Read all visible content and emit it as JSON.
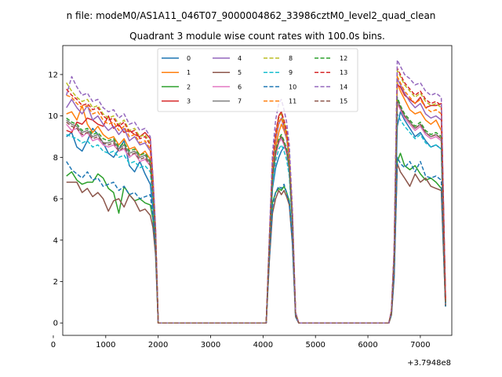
{
  "suptitle": "n file: modeM0/AS1A11_046T07_9000004862_33986cztM0_level2_quad_clean",
  "chart_data": {
    "type": "line",
    "title": "Quadrant 3 module wise count rates with 100.0s bins.",
    "xlabel": "",
    "ylabel": "",
    "x_offset_label": "+3.7948e8",
    "xlim": [
      180,
      7600
    ],
    "ylim": [
      -0.6,
      13.4
    ],
    "xticks": [
      0,
      1000,
      2000,
      3000,
      4000,
      5000,
      6000,
      7000
    ],
    "yticks": [
      0,
      2,
      4,
      6,
      8,
      10,
      12
    ],
    "grid": false,
    "legend": {
      "placement": "top-center",
      "columns": 4
    },
    "x": [
      250,
      350,
      450,
      550,
      650,
      750,
      850,
      950,
      1050,
      1150,
      1250,
      1350,
      1450,
      1550,
      1650,
      1750,
      1850,
      1900,
      1950,
      2000,
      2100,
      2500,
      3000,
      3500,
      4000,
      4060,
      4120,
      4180,
      4240,
      4300,
      4350,
      4400,
      4450,
      4500,
      4560,
      4620,
      4680,
      4700,
      5000,
      5500,
      6000,
      6350,
      6400,
      6450,
      6500,
      6560,
      6620,
      6700,
      6800,
      6900,
      7000,
      7100,
      7200,
      7300,
      7400,
      7480
    ],
    "series": [
      {
        "name": "0",
        "color": "#1f77b4",
        "dash": "solid",
        "values": [
          9.0,
          9.2,
          8.5,
          8.3,
          8.8,
          9.4,
          9.1,
          8.7,
          8.2,
          8.0,
          8.4,
          8.8,
          7.6,
          7.3,
          7.8,
          7.2,
          6.7,
          5.5,
          4.0,
          0,
          0,
          0,
          0,
          0,
          0,
          0,
          3.6,
          6.5,
          7.5,
          8.0,
          8.3,
          8.5,
          8.3,
          7.3,
          4.8,
          0.4,
          0,
          0,
          0,
          0,
          0,
          0,
          0,
          0.5,
          3.0,
          9.5,
          10.2,
          9.8,
          9.4,
          9.0,
          9.2,
          8.8,
          8.5,
          8.6,
          8.4,
          0.8
        ]
      },
      {
        "name": "1",
        "color": "#ff7f0e",
        "dash": "solid",
        "values": [
          10.1,
          10.2,
          9.8,
          10.5,
          9.6,
          9.2,
          9.5,
          9.1,
          8.9,
          9.0,
          8.6,
          8.9,
          8.4,
          8.5,
          8.1,
          8.3,
          7.9,
          6.4,
          4.2,
          0,
          0,
          0,
          0,
          0,
          0,
          0,
          3.8,
          7.2,
          8.5,
          9.2,
          9.6,
          9.3,
          8.9,
          7.8,
          5.0,
          0.5,
          0,
          0,
          0,
          0,
          0,
          0,
          0,
          0.6,
          3.3,
          11.6,
          11.2,
          10.8,
          10.3,
          10.1,
          10.2,
          9.8,
          9.6,
          9.8,
          9.3,
          1.0
        ]
      },
      {
        "name": "2",
        "color": "#2ca02c",
        "dash": "solid",
        "values": [
          7.1,
          7.3,
          6.9,
          6.7,
          6.8,
          6.8,
          7.2,
          7.0,
          6.5,
          6.3,
          5.3,
          6.6,
          6.2,
          5.9,
          6.0,
          5.8,
          5.7,
          5.0,
          3.6,
          0,
          0,
          0,
          0,
          0,
          0,
          0,
          3.2,
          5.8,
          6.3,
          6.5,
          6.4,
          6.6,
          6.3,
          5.9,
          4.0,
          0.4,
          0,
          0,
          0,
          0,
          0,
          0,
          0,
          0.4,
          2.4,
          7.8,
          8.2,
          7.6,
          7.4,
          7.6,
          7.2,
          6.9,
          7.0,
          6.8,
          6.5,
          0.8
        ]
      },
      {
        "name": "3",
        "color": "#d62728",
        "dash": "solid",
        "values": [
          9.3,
          9.2,
          9.7,
          9.6,
          9.9,
          9.8,
          9.6,
          9.5,
          10.0,
          9.4,
          9.6,
          9.2,
          9.3,
          9.1,
          9.0,
          9.2,
          8.9,
          7.0,
          4.5,
          0,
          0,
          0,
          0,
          0,
          0,
          0,
          3.8,
          7.5,
          9.0,
          10.0,
          10.2,
          9.6,
          9.0,
          8.0,
          5.2,
          0.5,
          0,
          0,
          0,
          0,
          0,
          0,
          0,
          0.6,
          3.4,
          11.5,
          11.4,
          11.0,
          10.8,
          10.6,
          10.9,
          10.4,
          10.5,
          10.5,
          10.6,
          1.1
        ]
      },
      {
        "name": "4",
        "color": "#9467bd",
        "dash": "solid",
        "values": [
          10.4,
          10.8,
          10.4,
          10.1,
          10.5,
          9.8,
          10.0,
          9.6,
          9.3,
          9.5,
          9.1,
          9.4,
          8.8,
          9.0,
          8.6,
          8.7,
          8.3,
          6.6,
          4.3,
          0,
          0,
          0,
          0,
          0,
          0,
          0,
          3.9,
          7.4,
          8.8,
          9.6,
          9.9,
          9.4,
          8.9,
          7.9,
          5.1,
          0.5,
          0,
          0,
          0,
          0,
          0,
          0,
          0,
          0.6,
          3.4,
          11.8,
          11.5,
          11.1,
          10.7,
          10.4,
          10.6,
          10.1,
          9.9,
          10.0,
          9.8,
          1.1
        ]
      },
      {
        "name": "5",
        "color": "#8c564b",
        "dash": "solid",
        "values": [
          6.8,
          6.8,
          6.8,
          6.3,
          6.5,
          6.1,
          6.3,
          6.0,
          5.4,
          5.9,
          6.0,
          5.6,
          6.2,
          5.9,
          5.4,
          5.5,
          5.2,
          4.6,
          3.3,
          0,
          0,
          0,
          0,
          0,
          0,
          0,
          3.0,
          5.3,
          6.0,
          6.4,
          6.2,
          6.4,
          6.1,
          5.7,
          3.8,
          0.3,
          0,
          0,
          0,
          0,
          0,
          0,
          0,
          0.4,
          2.2,
          7.7,
          7.3,
          7.0,
          6.6,
          7.2,
          6.8,
          7.0,
          6.6,
          6.5,
          6.4,
          0.8
        ]
      },
      {
        "name": "6",
        "color": "#e377c2",
        "dash": "solid",
        "values": [
          9.6,
          9.3,
          9.4,
          9.0,
          9.2,
          8.8,
          8.9,
          8.6,
          8.5,
          8.6,
          8.3,
          8.4,
          8.0,
          8.2,
          7.8,
          7.9,
          7.6,
          6.1,
          4.1,
          0,
          0,
          0,
          0,
          0,
          0,
          0,
          3.6,
          6.9,
          8.1,
          8.7,
          8.9,
          8.6,
          8.2,
          7.4,
          4.8,
          0.4,
          0,
          0,
          0,
          0,
          0,
          0,
          0,
          0.5,
          3.1,
          10.6,
          10.3,
          9.9,
          9.6,
          9.3,
          9.5,
          9.1,
          8.9,
          9.0,
          8.8,
          0.9
        ]
      },
      {
        "name": "7",
        "color": "#7f7f7f",
        "dash": "solid",
        "values": [
          9.8,
          9.6,
          9.5,
          9.2,
          9.3,
          9.0,
          9.1,
          8.7,
          8.7,
          8.8,
          8.4,
          8.6,
          8.2,
          8.3,
          8.0,
          8.1,
          7.7,
          6.2,
          4.1,
          0,
          0,
          0,
          0,
          0,
          0,
          0,
          3.7,
          7.0,
          8.2,
          8.8,
          9.0,
          8.7,
          8.3,
          7.5,
          4.9,
          0.4,
          0,
          0,
          0,
          0,
          0,
          0,
          0,
          0.5,
          3.2,
          10.8,
          10.4,
          10.0,
          9.7,
          9.4,
          9.6,
          9.2,
          9.0,
          9.1,
          8.9,
          0.9
        ]
      },
      {
        "name": "8",
        "color": "#bcbd22",
        "dash": "dashed",
        "values": [
          11.6,
          11.2,
          10.9,
          10.7,
          10.8,
          10.4,
          10.5,
          10.1,
          9.9,
          10.0,
          9.6,
          9.8,
          9.3,
          9.4,
          9.0,
          9.1,
          8.7,
          6.9,
          4.5,
          0,
          0,
          0,
          0,
          0,
          0,
          0,
          4.0,
          7.7,
          9.1,
          9.9,
          10.1,
          9.7,
          9.2,
          8.2,
          5.3,
          0.5,
          0,
          0,
          0,
          0,
          0,
          0,
          0,
          0.6,
          3.5,
          12.2,
          11.9,
          11.5,
          11.2,
          10.9,
          11.1,
          10.7,
          10.5,
          10.6,
          10.4,
          1.2
        ]
      },
      {
        "name": "9",
        "color": "#17becf",
        "dash": "dashed",
        "values": [
          9.1,
          9.0,
          8.9,
          8.7,
          8.8,
          8.5,
          8.6,
          8.3,
          8.2,
          8.3,
          8.0,
          8.1,
          7.7,
          7.8,
          7.5,
          7.6,
          7.3,
          5.9,
          3.9,
          0,
          0,
          0,
          0,
          0,
          0,
          0,
          3.5,
          6.7,
          7.8,
          8.4,
          8.6,
          8.3,
          7.9,
          7.1,
          4.6,
          0.4,
          0,
          0,
          0,
          0,
          0,
          0,
          0,
          0.5,
          3.0,
          10.1,
          9.8,
          9.5,
          9.2,
          8.9,
          9.1,
          8.7,
          8.5,
          8.6,
          8.4,
          0.9
        ]
      },
      {
        "name": "10",
        "color": "#1f77b4",
        "dash": "dashed",
        "values": [
          7.8,
          7.4,
          7.2,
          7.0,
          7.3,
          6.9,
          7.0,
          6.6,
          6.7,
          6.8,
          6.4,
          6.6,
          6.2,
          6.3,
          6.0,
          6.1,
          6.2,
          5.1,
          3.5,
          0,
          0,
          0,
          0,
          0,
          0,
          0,
          3.1,
          5.6,
          6.3,
          6.6,
          6.5,
          6.7,
          6.3,
          5.8,
          3.9,
          0.3,
          0,
          0,
          0,
          0,
          0,
          0,
          0,
          0.4,
          2.3,
          8.0,
          7.7,
          7.5,
          7.8,
          7.3,
          7.8,
          7.1,
          7.0,
          7.1,
          6.9,
          0.8
        ]
      },
      {
        "name": "11",
        "color": "#ff7f0e",
        "dash": "dashed",
        "values": [
          11.0,
          10.9,
          10.6,
          10.4,
          10.5,
          10.1,
          10.2,
          9.8,
          9.6,
          9.7,
          9.3,
          9.5,
          9.0,
          9.1,
          8.7,
          8.8,
          8.4,
          6.7,
          4.4,
          0,
          0,
          0,
          0,
          0,
          0,
          0,
          3.9,
          7.6,
          8.9,
          9.7,
          9.9,
          9.5,
          9.0,
          8.0,
          5.2,
          0.5,
          0,
          0,
          0,
          0,
          0,
          0,
          0,
          0.6,
          3.4,
          11.9,
          11.6,
          11.2,
          10.9,
          10.6,
          10.8,
          10.4,
          10.2,
          10.3,
          10.1,
          1.1
        ]
      },
      {
        "name": "12",
        "color": "#2ca02c",
        "dash": "dashed",
        "values": [
          9.9,
          9.7,
          9.6,
          9.3,
          9.4,
          9.1,
          9.2,
          8.9,
          8.8,
          8.9,
          8.5,
          8.7,
          8.3,
          8.4,
          8.1,
          8.2,
          7.8,
          6.3,
          4.2,
          0,
          0,
          0,
          0,
          0,
          0,
          0,
          3.7,
          7.1,
          8.3,
          8.9,
          9.1,
          8.8,
          8.4,
          7.6,
          4.9,
          0.4,
          0,
          0,
          0,
          0,
          0,
          0,
          0,
          0.5,
          3.2,
          10.9,
          10.5,
          10.1,
          9.8,
          9.5,
          9.7,
          9.3,
          9.1,
          9.2,
          9.0,
          1.0
        ]
      },
      {
        "name": "13",
        "color": "#d62728",
        "dash": "dashed",
        "values": [
          11.3,
          11.0,
          10.8,
          10.5,
          10.6,
          10.3,
          10.4,
          10.0,
          9.8,
          9.9,
          9.5,
          9.7,
          9.2,
          9.3,
          8.9,
          9.0,
          8.6,
          6.8,
          4.5,
          0,
          0,
          0,
          0,
          0,
          0,
          0,
          4.0,
          7.8,
          9.2,
          10.0,
          10.2,
          9.8,
          9.3,
          8.3,
          5.3,
          0.5,
          0,
          0,
          0,
          0,
          0,
          0,
          0,
          0.6,
          3.5,
          12.3,
          12.0,
          11.6,
          11.3,
          11.0,
          11.2,
          10.8,
          10.6,
          10.7,
          10.5,
          1.2
        ]
      },
      {
        "name": "14",
        "color": "#9467bd",
        "dash": "dashed",
        "values": [
          11.0,
          11.9,
          11.4,
          11.0,
          11.1,
          10.7,
          10.8,
          10.4,
          10.2,
          10.3,
          9.9,
          10.1,
          9.6,
          9.7,
          9.3,
          9.4,
          9.0,
          7.1,
          4.7,
          0,
          0,
          0,
          0,
          0,
          0,
          0,
          4.2,
          8.2,
          9.8,
          10.6,
          10.8,
          10.3,
          9.7,
          8.6,
          5.5,
          0.5,
          0,
          0,
          0,
          0,
          0,
          0,
          0,
          0.6,
          3.6,
          12.7,
          12.4,
          12.0,
          11.8,
          11.5,
          11.6,
          11.2,
          11.0,
          11.1,
          10.9,
          1.2
        ]
      },
      {
        "name": "15",
        "color": "#8c564b",
        "dash": "dashed",
        "values": [
          9.7,
          9.5,
          9.4,
          9.1,
          9.2,
          8.9,
          9.0,
          8.7,
          8.6,
          8.7,
          8.3,
          8.5,
          8.1,
          8.2,
          7.9,
          8.0,
          7.6,
          6.1,
          4.1,
          0,
          0,
          0,
          0,
          0,
          0,
          0,
          3.7,
          7.0,
          8.2,
          8.8,
          9.0,
          8.7,
          8.3,
          7.5,
          4.9,
          0.4,
          0,
          0,
          0,
          0,
          0,
          0,
          0,
          0.5,
          3.1,
          10.7,
          10.4,
          10.0,
          9.7,
          9.4,
          9.6,
          9.2,
          9.0,
          9.1,
          8.9,
          0.9
        ]
      }
    ]
  }
}
